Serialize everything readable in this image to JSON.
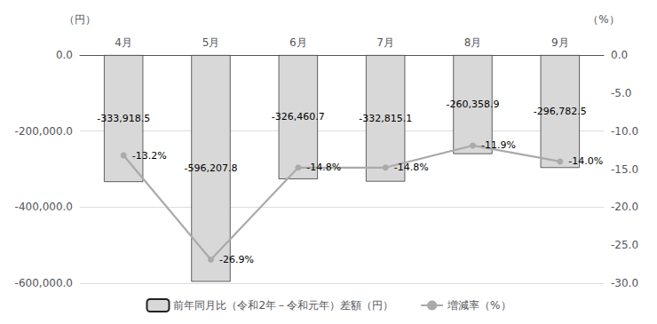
{
  "chart_data": {
    "type": "bar",
    "categories": [
      "4月",
      "5月",
      "6月",
      "7月",
      "8月",
      "9月"
    ],
    "series": [
      {
        "name": "前年同月比（令和2年－令和元年）差額（円）",
        "type": "bar",
        "color": "#d8d8d8",
        "values": [
          -333918.5,
          -596207.8,
          -326460.7,
          -332815.1,
          -260358.9,
          -296782.5
        ],
        "value_labels": [
          "-333,918.5",
          "-596,207.8",
          "-326,460.7",
          "-332,815.1",
          "-260,358.9",
          "-296,782.5"
        ]
      },
      {
        "name": "増減率（%）",
        "type": "line",
        "axis": "y2",
        "color": "#aaaaaa",
        "marker": "circle",
        "values": [
          -13.2,
          -26.9,
          -14.8,
          -14.8,
          -11.9,
          -14.0
        ],
        "value_labels": [
          "-13.2%",
          "-26.9%",
          "-14.8%",
          "-14.8%",
          "-11.9%",
          "-14.0%"
        ]
      }
    ],
    "ylabel": "（円）",
    "y2label": "（%）",
    "ylim": [
      -600000,
      0
    ],
    "yticks": [
      {
        "value": 0,
        "label": "0.0"
      },
      {
        "value": -200000,
        "label": "-200,000.0"
      },
      {
        "value": -400000,
        "label": "-400,000.0"
      },
      {
        "value": -600000,
        "label": "-600,000.0"
      }
    ],
    "y2lim": [
      -30,
      0
    ],
    "y2ticks": [
      {
        "value": 0,
        "label": "0.0"
      },
      {
        "value": -5,
        "label": "-5.0"
      },
      {
        "value": -10,
        "label": "-10.0"
      },
      {
        "value": -15,
        "label": "-15.0"
      },
      {
        "value": -20,
        "label": "-20.0"
      },
      {
        "value": -25,
        "label": "-25.0"
      },
      {
        "value": -30,
        "label": "-30.0"
      }
    ],
    "grid": true,
    "data_labels": true,
    "legend": "bottom"
  }
}
